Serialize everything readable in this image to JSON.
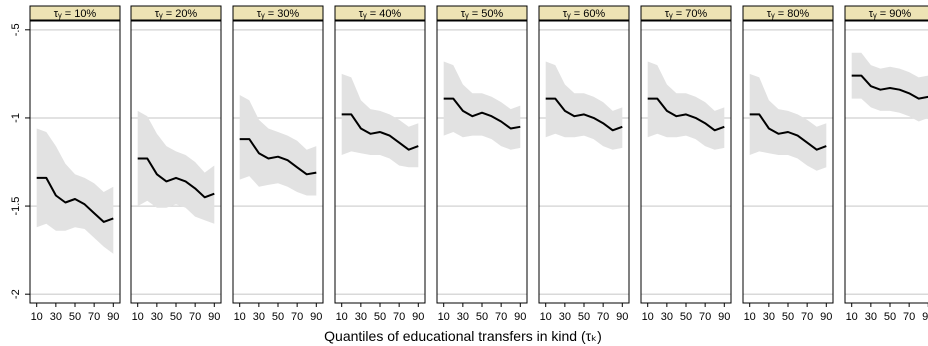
{
  "chart_data": {
    "type": "line",
    "xlabel": "Quantiles of educational transfers in kind (τₖ)",
    "ylim": [
      -2.05,
      -0.45
    ],
    "yticks": [
      -0.5,
      -1,
      -1.5,
      -2
    ],
    "ytick_labels": [
      "-.5",
      "-1",
      "-1.5",
      "-2"
    ],
    "x": [
      10,
      20,
      30,
      40,
      50,
      60,
      70,
      80,
      90
    ],
    "xticks": [
      10,
      30,
      50,
      70,
      90
    ],
    "xtick_labels": [
      "10",
      "30",
      "50",
      "70",
      "90"
    ],
    "xlim": [
      3,
      97
    ],
    "grid": true,
    "colors": {
      "strip": "#ede3b4",
      "band": "#e2e2e2",
      "line": "#000000",
      "grid": "#d9d9d9"
    },
    "panels": [
      {
        "title": "τᵧ = 10%",
        "values": [
          -1.34,
          -1.34,
          -1.44,
          -1.48,
          -1.46,
          -1.49,
          -1.54,
          -1.59,
          -1.57
        ],
        "lower": [
          -1.62,
          -1.6,
          -1.64,
          -1.64,
          -1.62,
          -1.63,
          -1.68,
          -1.73,
          -1.77
        ],
        "upper": [
          -1.06,
          -1.08,
          -1.16,
          -1.26,
          -1.32,
          -1.34,
          -1.37,
          -1.42,
          -1.39
        ]
      },
      {
        "title": "τᵧ = 20%",
        "values": [
          -1.23,
          -1.23,
          -1.32,
          -1.36,
          -1.34,
          -1.36,
          -1.4,
          -1.45,
          -1.43
        ],
        "lower": [
          -1.5,
          -1.47,
          -1.51,
          -1.51,
          -1.49,
          -1.51,
          -1.56,
          -1.58,
          -1.6
        ],
        "upper": [
          -0.96,
          -0.99,
          -1.09,
          -1.16,
          -1.19,
          -1.21,
          -1.25,
          -1.31,
          -1.27
        ]
      },
      {
        "title": "τᵧ = 30%",
        "values": [
          -1.12,
          -1.12,
          -1.2,
          -1.23,
          -1.22,
          -1.24,
          -1.28,
          -1.32,
          -1.31
        ],
        "lower": [
          -1.35,
          -1.33,
          -1.39,
          -1.38,
          -1.37,
          -1.39,
          -1.42,
          -1.44,
          -1.44
        ],
        "upper": [
          -0.87,
          -0.9,
          -1.01,
          -1.06,
          -1.08,
          -1.1,
          -1.13,
          -1.18,
          -1.16
        ]
      },
      {
        "title": "τᵧ = 40%",
        "values": [
          -0.98,
          -0.98,
          -1.06,
          -1.09,
          -1.08,
          -1.1,
          -1.14,
          -1.18,
          -1.16
        ],
        "lower": [
          -1.21,
          -1.19,
          -1.2,
          -1.21,
          -1.21,
          -1.23,
          -1.27,
          -1.28,
          -1.28
        ],
        "upper": [
          -0.75,
          -0.77,
          -0.9,
          -0.95,
          -0.96,
          -0.98,
          -1.01,
          -1.05,
          -1.03
        ]
      },
      {
        "title": "τᵧ = 50%",
        "values": [
          -0.89,
          -0.89,
          -0.96,
          -0.99,
          -0.97,
          -0.99,
          -1.02,
          -1.06,
          -1.05
        ],
        "lower": [
          -1.1,
          -1.08,
          -1.11,
          -1.1,
          -1.1,
          -1.12,
          -1.16,
          -1.18,
          -1.17
        ],
        "upper": [
          -0.68,
          -0.7,
          -0.81,
          -0.86,
          -0.86,
          -0.88,
          -0.91,
          -0.95,
          -0.93
        ]
      },
      {
        "title": "τᵧ = 60%",
        "values": [
          -0.89,
          -0.89,
          -0.96,
          -0.99,
          -0.98,
          -1.0,
          -1.03,
          -1.07,
          -1.05
        ],
        "lower": [
          -1.11,
          -1.09,
          -1.11,
          -1.11,
          -1.1,
          -1.12,
          -1.16,
          -1.18,
          -1.17
        ],
        "upper": [
          -0.68,
          -0.7,
          -0.81,
          -0.86,
          -0.86,
          -0.88,
          -0.91,
          -0.96,
          -0.94
        ]
      },
      {
        "title": "τᵧ = 70%",
        "values": [
          -0.89,
          -0.89,
          -0.96,
          -0.99,
          -0.98,
          -1.0,
          -1.03,
          -1.07,
          -1.05
        ],
        "lower": [
          -1.11,
          -1.09,
          -1.11,
          -1.11,
          -1.1,
          -1.12,
          -1.16,
          -1.18,
          -1.17
        ],
        "upper": [
          -0.68,
          -0.7,
          -0.81,
          -0.86,
          -0.86,
          -0.88,
          -0.91,
          -0.96,
          -0.94
        ]
      },
      {
        "title": "τᵧ = 80%",
        "values": [
          -0.98,
          -0.98,
          -1.06,
          -1.09,
          -1.08,
          -1.1,
          -1.14,
          -1.18,
          -1.16
        ],
        "lower": [
          -1.21,
          -1.19,
          -1.2,
          -1.21,
          -1.21,
          -1.23,
          -1.27,
          -1.3,
          -1.28
        ],
        "upper": [
          -0.75,
          -0.77,
          -0.9,
          -0.95,
          -0.96,
          -0.98,
          -1.01,
          -1.05,
          -1.03
        ]
      },
      {
        "title": "τᵧ = 90%",
        "values": [
          -0.76,
          -0.76,
          -0.82,
          -0.84,
          -0.83,
          -0.84,
          -0.86,
          -0.89,
          -0.88
        ],
        "lower": [
          -0.89,
          -0.89,
          -0.94,
          -0.96,
          -0.96,
          -0.97,
          -0.99,
          -1.02,
          -1.0
        ],
        "upper": [
          -0.63,
          -0.63,
          -0.7,
          -0.72,
          -0.71,
          -0.72,
          -0.74,
          -0.77,
          -0.76
        ]
      }
    ]
  }
}
